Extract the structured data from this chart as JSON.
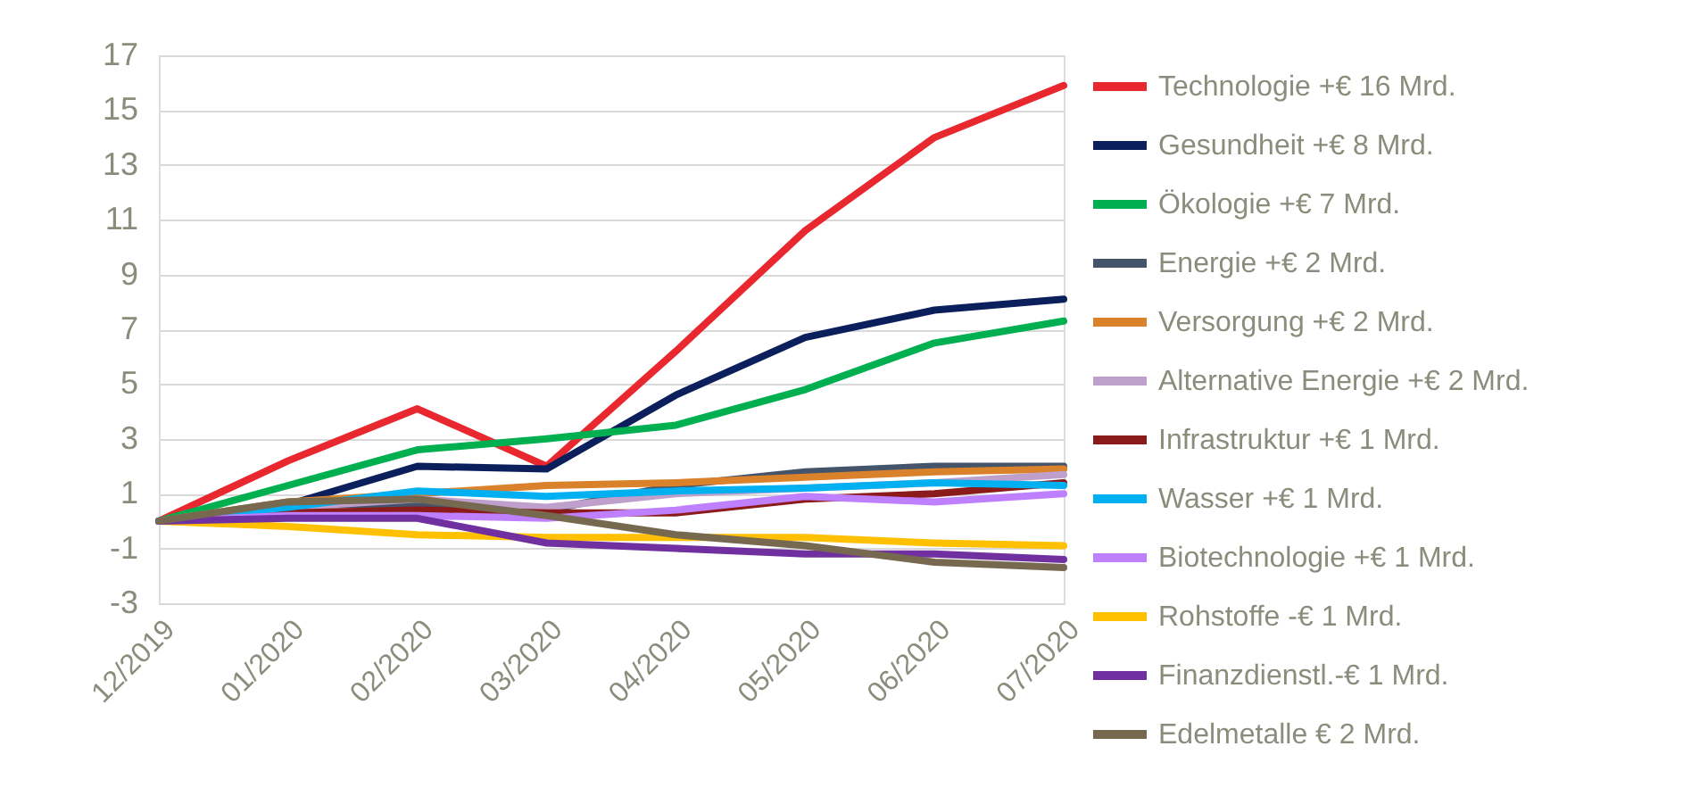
{
  "chart_data": {
    "type": "line",
    "categories": [
      "12/2019",
      "01/2020",
      "02/2020",
      "03/2020",
      "04/2020",
      "05/2020",
      "06/2020",
      "07/2020"
    ],
    "ylim": [
      -3,
      17
    ],
    "yticks": [
      -3,
      -1,
      1,
      3,
      5,
      7,
      9,
      11,
      13,
      15,
      17
    ],
    "grid": "y",
    "legend": "right",
    "marker": "none",
    "line_style": "solid",
    "series": [
      {
        "name": "Technologie +€ 16 Mrd.",
        "color": "#e8272f",
        "values": [
          0,
          2.2,
          4.1,
          2.0,
          6.2,
          10.6,
          14.0,
          15.9
        ]
      },
      {
        "name": "Gesundheit +€ 8 Mrd.",
        "color": "#0b1f5c",
        "values": [
          0,
          0.6,
          2.0,
          1.9,
          4.6,
          6.7,
          7.7,
          8.1
        ]
      },
      {
        "name": "Ökologie +€ 7 Mrd.",
        "color": "#00b050",
        "values": [
          0,
          1.3,
          2.6,
          3.0,
          3.5,
          4.8,
          6.5,
          7.3
        ]
      },
      {
        "name": "Energie +€ 2 Mrd.",
        "color": "#44546a",
        "values": [
          0,
          0.6,
          0.6,
          0.4,
          1.3,
          1.8,
          2.0,
          2.0
        ]
      },
      {
        "name": "Versorgung +€ 2 Mrd.",
        "color": "#d9822b",
        "values": [
          0,
          0.7,
          1.0,
          1.3,
          1.4,
          1.6,
          1.8,
          1.9
        ]
      },
      {
        "name": "Alternative Energie +€ 2 Mrd.",
        "color": "#bfa0cc",
        "values": [
          0,
          0.5,
          0.8,
          0.5,
          1.0,
          1.2,
          1.4,
          1.7
        ]
      },
      {
        "name": "Infrastruktur +€ 1 Mrd.",
        "color": "#8b1a1a",
        "values": [
          0,
          0.3,
          0.4,
          0.3,
          0.3,
          0.8,
          1.0,
          1.4
        ]
      },
      {
        "name": "Wasser +€ 1 Mrd.",
        "color": "#00b0f0",
        "values": [
          0,
          0.5,
          1.1,
          0.9,
          1.1,
          1.2,
          1.4,
          1.3
        ]
      },
      {
        "name": "Biotechnologie +€ 1 Mrd.",
        "color": "#bf80ff",
        "values": [
          0,
          0.2,
          0.2,
          0.1,
          0.4,
          0.9,
          0.7,
          1.0
        ]
      },
      {
        "name": "Rohstoffe -€ 1 Mrd.",
        "color": "#ffc000",
        "values": [
          0,
          -0.2,
          -0.5,
          -0.6,
          -0.6,
          -0.6,
          -0.8,
          -0.9
        ]
      },
      {
        "name": "Finanzdienstl.-€ 1 Mrd.",
        "color": "#7030a0",
        "values": [
          0,
          0.1,
          0.1,
          -0.8,
          -1.0,
          -1.2,
          -1.2,
          -1.4
        ]
      },
      {
        "name": "Edelmetalle € 2 Mrd.",
        "color": "#76694f",
        "values": [
          0,
          0.7,
          0.8,
          0.2,
          -0.5,
          -0.9,
          -1.5,
          -1.7
        ]
      }
    ]
  }
}
